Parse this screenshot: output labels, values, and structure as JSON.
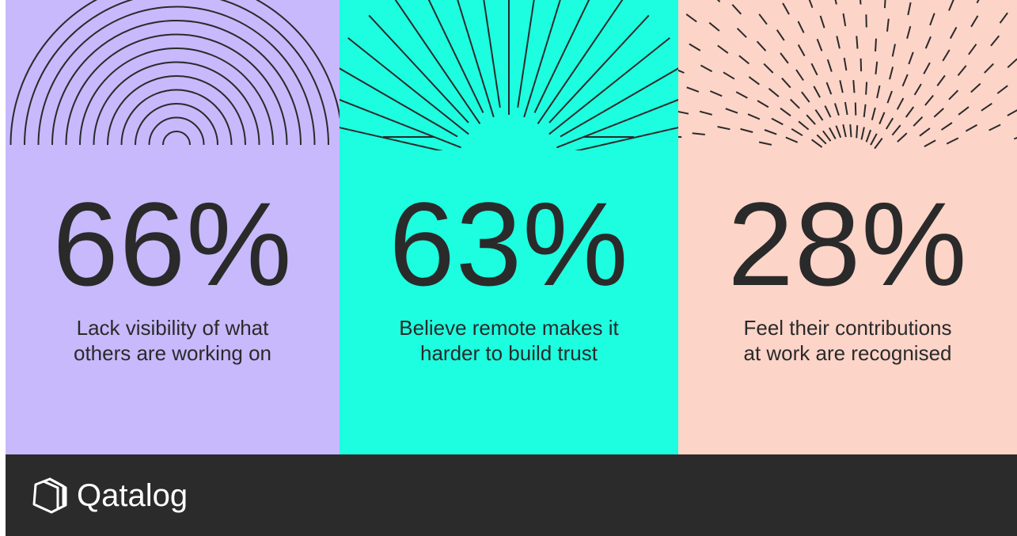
{
  "colors": {
    "panel_1": "#c7b9fc",
    "panel_2": "#1dfee0",
    "panel_3": "#fdd4c8",
    "footer": "#2b2b2b",
    "ink": "#2a2a2a",
    "logo": "#ffffff"
  },
  "stats": [
    {
      "value": "66%",
      "caption_line_1": "Lack visibility of what",
      "caption_line_2": "others are working on",
      "pattern": "concentric-arcs"
    },
    {
      "value": "63%",
      "caption_line_1": "Believe remote makes it",
      "caption_line_2": "harder to build trust",
      "pattern": "sunburst-rays"
    },
    {
      "value": "28%",
      "caption_line_1": "Feel their contributions",
      "caption_line_2": "at work are recognised",
      "pattern": "radial-dashes"
    }
  ],
  "footer": {
    "brand_name": "Qatalog",
    "brand_icon": "qatalog-logo-icon"
  }
}
